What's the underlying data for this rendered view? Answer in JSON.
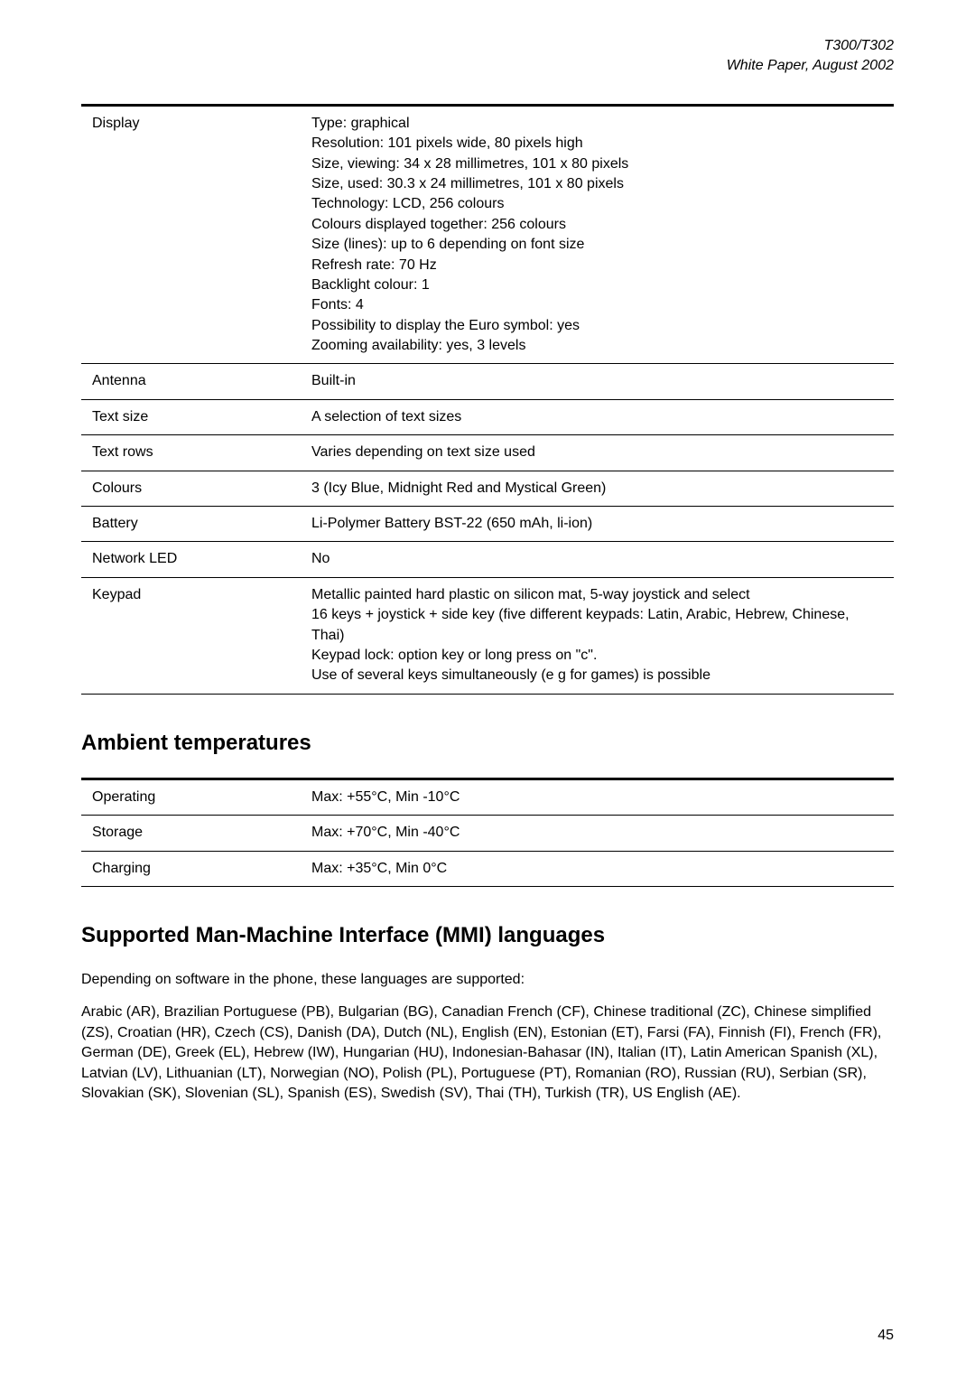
{
  "header": {
    "line1": "T300/T302",
    "line2": "White Paper, August 2002"
  },
  "specs": [
    {
      "label": "Display",
      "value": "Type: graphical\nResolution: 101 pixels wide, 80 pixels high\nSize, viewing: 34 x 28 millimetres, 101 x 80 pixels\nSize, used: 30.3 x 24 millimetres, 101 x 80 pixels\nTechnology: LCD, 256 colours\nColours displayed together: 256 colours\nSize (lines): up to 6 depending on font size\nRefresh rate: 70 Hz\nBacklight colour: 1\nFonts: 4\nPossibility to display the Euro symbol: yes\nZooming availability: yes, 3 levels"
    },
    {
      "label": "Antenna",
      "value": "Built-in"
    },
    {
      "label": "Text size",
      "value": "A selection of text sizes"
    },
    {
      "label": "Text rows",
      "value": "Varies depending on text size used"
    },
    {
      "label": "Colours",
      "value": "3 (Icy Blue, Midnight Red and Mystical Green)"
    },
    {
      "label": "Battery",
      "value": "Li-Polymer Battery BST-22 (650 mAh, li-ion)"
    },
    {
      "label": "Network LED",
      "value": "No"
    },
    {
      "label": "Keypad",
      "value": "Metallic painted hard plastic on silicon mat, 5-way joystick and select\n16 keys + joystick + side key (five different keypads: Latin, Arabic, Hebrew, Chinese, Thai)\nKeypad lock: option key or long press on \"c\".\nUse of several keys simultaneously (e g for games) is possible"
    }
  ],
  "ambientHeading": "Ambient temperatures",
  "temps": [
    {
      "label": "Operating",
      "value": "Max: +55°C, Min -10°C"
    },
    {
      "label": "Storage",
      "value": "Max: +70°C, Min -40°C"
    },
    {
      "label": "Charging",
      "value": "Max: +35°C, Min 0°C"
    }
  ],
  "mmiHeading": "Supported Man-Machine Interface (MMI) languages",
  "mmiIntro": "Depending on software in the phone, these languages are supported:",
  "mmiBody": "Arabic (AR), Brazilian Portuguese (PB), Bulgarian (BG), Canadian French (CF),  Chinese traditional (ZC), Chinese simplified (ZS), Croatian (HR), Czech (CS), Danish (DA), Dutch (NL), English (EN), Estonian (ET), Farsi (FA), Finnish (FI), French (FR), German (DE), Greek (EL), Hebrew (IW), Hungarian (HU), Indonesian-Bahasar (IN), Italian (IT), Latin American Spanish (XL), Latvian (LV), Lithuanian (LT), Norwegian (NO), Polish (PL), Portuguese (PT), Romanian (RO), Russian (RU), Serbian (SR), Slovakian (SK), Slovenian (SL), Spanish (ES), Swedish (SV), Thai (TH), Turkish (TR), US English (AE).",
  "pageNumber": "45"
}
